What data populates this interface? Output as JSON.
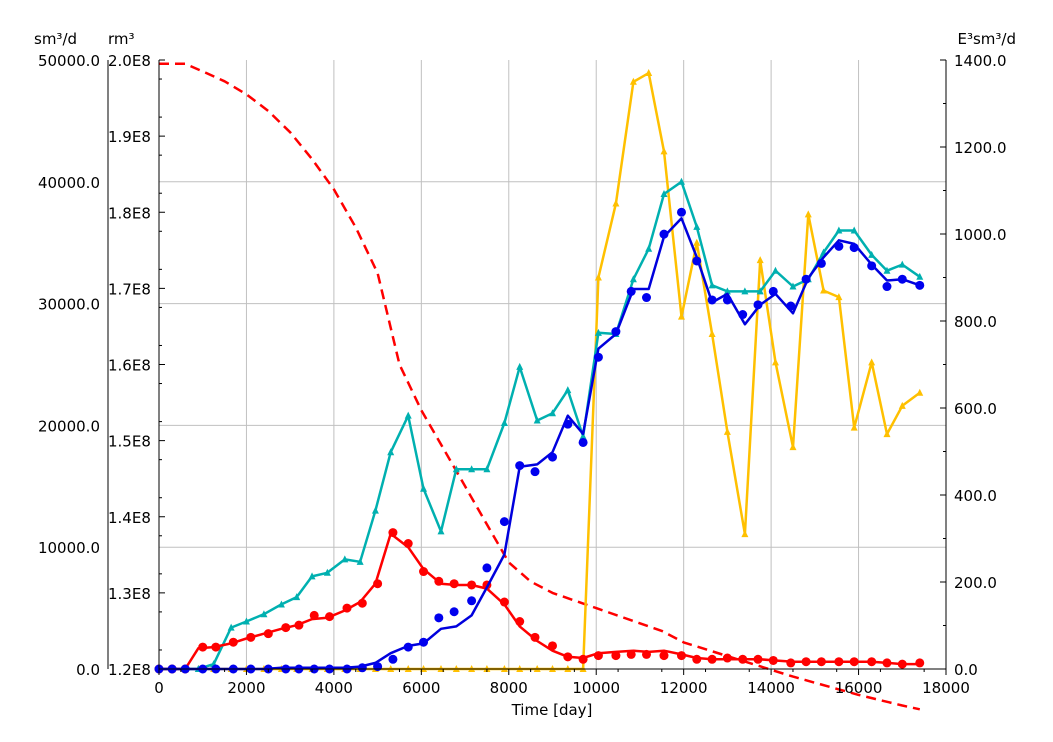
{
  "chart_data": {
    "type": "line",
    "xlabel": "Time [day]",
    "x_ticks": [
      0,
      2000,
      4000,
      6000,
      8000,
      10000,
      12000,
      14000,
      16000,
      18000
    ],
    "x_tick_labels": [
      "0",
      "2000",
      "4000",
      "6000",
      "8000",
      "10000",
      "12000",
      "14000",
      "16000",
      "18000"
    ],
    "xlim": [
      0,
      18000
    ],
    "axes": {
      "left_rate": {
        "unit": "sm³/d",
        "ylim": [
          0,
          50000
        ],
        "ticks": [
          0,
          10000,
          20000,
          30000,
          40000,
          50000
        ],
        "tick_labels": [
          "0.0",
          "10000.0",
          "20000.0",
          "30000.0",
          "40000.0",
          "50000.0"
        ]
      },
      "left_volume": {
        "unit": "rm³",
        "ylim": [
          120000000,
          200000000
        ],
        "ticks": [
          120000000,
          130000000,
          140000000,
          150000000,
          160000000,
          170000000,
          180000000,
          190000000,
          200000000
        ],
        "tick_labels": [
          "1.2E8",
          "1.3E8",
          "1.4E8",
          "1.5E8",
          "1.6E8",
          "1.7E8",
          "1.8E8",
          "1.9E8",
          "2.0E8"
        ]
      },
      "right_rate": {
        "unit": "E³sm³/d",
        "ylim": [
          0,
          1400
        ],
        "ticks": [
          0,
          200,
          400,
          600,
          800,
          1000,
          1200,
          1400
        ],
        "tick_labels": [
          "0.0",
          "200.0",
          "400.0",
          "600.0",
          "800.0",
          "1000.0",
          "1200.0",
          "1400.0"
        ]
      }
    },
    "grid": true,
    "legend": "none",
    "series": [
      {
        "axis": "left_volume",
        "style": "dashed",
        "color": "#ff0000",
        "x": [
          0,
          600,
          1000,
          1500,
          2000,
          2500,
          3000,
          3500,
          4000,
          4500,
          5000,
          5500,
          6000,
          6500,
          7000,
          7500,
          8000,
          8500,
          9000,
          9500,
          10000,
          10500,
          11000,
          11500,
          12000,
          12500,
          13000,
          13500,
          14000,
          14500,
          15000,
          15500,
          16000,
          16500,
          17000,
          17400
        ],
        "y": [
          199500000,
          199500000,
          198500000,
          197200000,
          195500000,
          193300000,
          190500000,
          187000000,
          183000000,
          178000000,
          172000000,
          160000000,
          154000000,
          149000000,
          144000000,
          139000000,
          134000000,
          131500000,
          130000000,
          129000000,
          128000000,
          127000000,
          126000000,
          125000000,
          123500000,
          122600000,
          121700000,
          120800000,
          119900000,
          119000000,
          118200000,
          117400000,
          116600000,
          115900000,
          115200000,
          114700000
        ]
      },
      {
        "axis": "right_rate",
        "style": "line-triangles",
        "color": "#ffc000",
        "x": [
          0,
          300,
          600,
          900,
          1250,
          1650,
          2000,
          2400,
          2800,
          3150,
          3500,
          3850,
          4250,
          4600,
          4950,
          5300,
          5700,
          6050,
          6450,
          6800,
          7150,
          7500,
          7900,
          8250,
          8650,
          9000,
          9350,
          9700,
          10050,
          10450,
          10850,
          11200,
          11550,
          11950,
          12300,
          12650,
          13000,
          13400,
          13750,
          14100,
          14500,
          14850,
          15200,
          15550,
          15900,
          16300,
          16650,
          17000,
          17400
        ],
        "y": [
          0,
          0,
          0,
          0,
          0,
          0,
          0,
          0,
          0,
          0,
          0,
          0,
          0,
          0,
          0,
          0,
          0,
          0,
          0,
          0,
          0,
          0,
          0,
          0,
          0,
          0,
          0,
          0,
          900,
          1070,
          1350,
          1370,
          1190,
          810,
          980,
          770,
          545,
          310,
          940,
          705,
          510,
          1045,
          870,
          855,
          555,
          705,
          540,
          605,
          635
        ]
      },
      {
        "axis": "left_rate",
        "style": "line-triangles",
        "color": "#00b0b0",
        "x": [
          0,
          300,
          600,
          900,
          1250,
          1650,
          2000,
          2400,
          2800,
          3150,
          3500,
          3850,
          4250,
          4600,
          4950,
          5300,
          5700,
          6050,
          6450,
          6800,
          7150,
          7500,
          7900,
          8250,
          8650,
          9000,
          9350,
          9700,
          10050,
          10450,
          10850,
          11200,
          11550,
          11950,
          12300,
          12650,
          13000,
          13400,
          13750,
          14100,
          14500,
          14850,
          15200,
          15550,
          15900,
          16300,
          16650,
          17000,
          17400
        ],
        "y": [
          0,
          0,
          0,
          0,
          400,
          3400,
          3900,
          4500,
          5300,
          5900,
          7600,
          7900,
          9000,
          8800,
          13000,
          17800,
          20800,
          14800,
          11300,
          16400,
          16400,
          16400,
          20200,
          24800,
          20400,
          21000,
          22900,
          19100,
          27600,
          27500,
          32000,
          34500,
          39000,
          40000,
          36300,
          31500,
          31000,
          31000,
          31000,
          32700,
          31400,
          32000,
          34200,
          36000,
          36000,
          34000,
          32700,
          33200,
          32200
        ]
      },
      {
        "axis": "left_rate",
        "style": "line",
        "color": "#ff0000",
        "x": [
          0,
          300,
          600,
          900,
          1250,
          1650,
          2000,
          2400,
          2800,
          3150,
          3500,
          3850,
          4250,
          4600,
          4950,
          5300,
          5700,
          6050,
          6450,
          6800,
          7150,
          7500,
          7900,
          8250,
          8650,
          9000,
          9350,
          9700,
          10050,
          10450,
          10850,
          11200,
          11550,
          11950,
          12300,
          12650,
          13000,
          13400,
          13750,
          14100,
          14500,
          14850,
          15200,
          15550,
          15900,
          16300,
          16650,
          17000,
          17400
        ],
        "y": [
          0,
          0,
          0,
          1700,
          1800,
          2100,
          2500,
          2900,
          3300,
          3600,
          4100,
          4200,
          4800,
          5500,
          7000,
          11100,
          10000,
          8200,
          7000,
          6900,
          6900,
          6600,
          5300,
          3500,
          2300,
          1500,
          1000,
          900,
          1300,
          1400,
          1500,
          1400,
          1500,
          1200,
          900,
          800,
          800,
          800,
          800,
          700,
          600,
          600,
          600,
          600,
          600,
          600,
          500,
          400,
          400
        ]
      },
      {
        "axis": "left_rate",
        "style": "markers-circle",
        "color": "#ff0000",
        "x": [
          0,
          300,
          600,
          1000,
          1300,
          1700,
          2100,
          2500,
          2900,
          3200,
          3550,
          3900,
          4300,
          4650,
          5000,
          5350,
          5700,
          6050,
          6400,
          6750,
          7150,
          7500,
          7900,
          8250,
          8600,
          9000,
          9350,
          9700,
          10050,
          10450,
          10800,
          11150,
          11550,
          11950,
          12300,
          12650,
          13000,
          13350,
          13700,
          14050,
          14450,
          14800,
          15150,
          15550,
          15900,
          16300,
          16650,
          17000,
          17400
        ],
        "y": [
          0,
          0,
          0,
          1800,
          1800,
          2200,
          2600,
          2900,
          3400,
          3600,
          4400,
          4300,
          5000,
          5400,
          7000,
          11200,
          10300,
          8000,
          7200,
          7000,
          6900,
          6900,
          5500,
          3900,
          2600,
          1900,
          1000,
          800,
          1100,
          1100,
          1200,
          1200,
          1100,
          1100,
          800,
          800,
          900,
          800,
          800,
          700,
          500,
          600,
          600,
          600,
          600,
          600,
          500,
          400,
          500
        ]
      },
      {
        "axis": "left_rate",
        "style": "line",
        "color": "#0000dd",
        "x": [
          0,
          300,
          600,
          900,
          1250,
          1650,
          2000,
          2400,
          2800,
          3150,
          3500,
          3850,
          4250,
          4600,
          4950,
          5300,
          5700,
          6050,
          6450,
          6800,
          7150,
          7500,
          7900,
          8250,
          8650,
          9000,
          9350,
          9700,
          10050,
          10450,
          10850,
          11200,
          11550,
          11950,
          12300,
          12650,
          13000,
          13400,
          13750,
          14100,
          14500,
          14850,
          15200,
          15550,
          15900,
          16300,
          16650,
          17000,
          17400
        ],
        "y": [
          0,
          0,
          0,
          0,
          0,
          0,
          0,
          0,
          100,
          100,
          100,
          100,
          100,
          200,
          500,
          1300,
          1900,
          2100,
          3300,
          3500,
          4400,
          6700,
          9400,
          16600,
          16800,
          17800,
          20800,
          19300,
          26300,
          27500,
          31200,
          31200,
          35500,
          37000,
          33800,
          30100,
          30800,
          28300,
          29900,
          30800,
          29200,
          32100,
          33800,
          35200,
          34900,
          33200,
          31900,
          32000,
          31500
        ]
      },
      {
        "axis": "left_rate",
        "style": "markers-circle",
        "color": "#0000ee",
        "x": [
          0,
          300,
          600,
          1000,
          1300,
          1700,
          2100,
          2500,
          2900,
          3200,
          3550,
          3900,
          4300,
          4650,
          5000,
          5350,
          5700,
          6050,
          6400,
          6750,
          7150,
          7500,
          7900,
          8250,
          8600,
          9000,
          9350,
          9700,
          10050,
          10450,
          10800,
          11150,
          11550,
          11950,
          12300,
          12650,
          13000,
          13350,
          13700,
          14050,
          14450,
          14800,
          15150,
          15550,
          15900,
          16300,
          16650,
          17000,
          17400
        ],
        "y": [
          0,
          0,
          0,
          0,
          0,
          0,
          0,
          0,
          0,
          0,
          0,
          0,
          0,
          100,
          200,
          800,
          1800,
          2200,
          4200,
          4700,
          5600,
          8300,
          12100,
          16700,
          16200,
          17400,
          20100,
          18600,
          25600,
          27700,
          31000,
          30500,
          35700,
          37500,
          33500,
          30300,
          30300,
          29100,
          29900,
          31000,
          29800,
          32000,
          33300,
          34700,
          34600,
          33100,
          31400,
          32000,
          31500
        ]
      }
    ]
  }
}
